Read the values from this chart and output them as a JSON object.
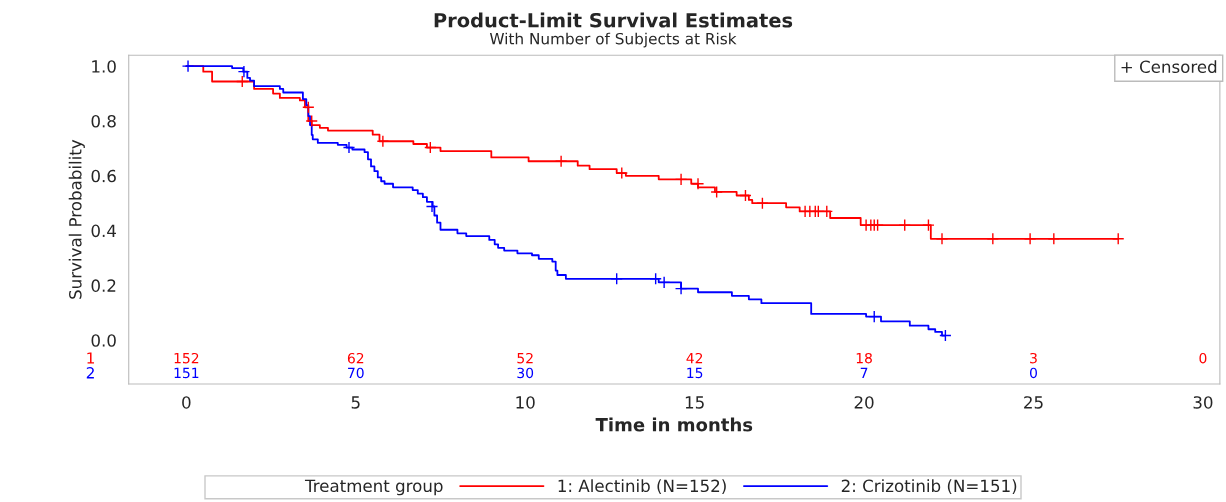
{
  "chart_data": {
    "type": "step",
    "title": "Product-Limit Survival Estimates",
    "subtitle": "With Number of Subjects at Risk",
    "xlabel": "Time in months",
    "ylabel": "Survival Probability",
    "legend_title": "Treatment group",
    "legend": "bottom",
    "grid": false,
    "line_style": "solid",
    "xlim": [
      -1.7,
      30.5
    ],
    "ylim": [
      -0.16,
      1.04
    ],
    "xticks": [
      0,
      5,
      10,
      15,
      20,
      25,
      30
    ],
    "yticks": [
      {
        "value": 0,
        "label": "0.0"
      },
      {
        "value": 0.2,
        "label": "0.2"
      },
      {
        "value": 0.4,
        "label": "0.4"
      },
      {
        "value": 0.6,
        "label": "0.6"
      },
      {
        "value": 0.8,
        "label": "0.8"
      },
      {
        "value": 1,
        "label": "1.0"
      }
    ],
    "series": [
      {
        "name": "1: Alectinib (N=152)",
        "color": "#ff0000",
        "x": [
          0,
          0.5,
          0.76,
          2.0,
          2.56,
          2.76,
          3.35,
          3.5,
          3.6,
          3.7,
          3.94,
          4.18,
          5.5,
          5.7,
          6.7,
          7.1,
          7.5,
          9.0,
          10.1,
          11.55,
          11.9,
          12.7,
          12.97,
          13.94,
          14.9,
          15.1,
          15.6,
          16.24,
          16.6,
          16.7,
          17.7,
          18.1,
          19.0,
          19.9,
          21.97,
          27.5
        ],
        "values": [
          1.0,
          0.98,
          0.944,
          0.917,
          0.9,
          0.884,
          0.875,
          0.85,
          0.8,
          0.785,
          0.775,
          0.765,
          0.75,
          0.726,
          0.716,
          0.703,
          0.69,
          0.667,
          0.653,
          0.637,
          0.624,
          0.61,
          0.6,
          0.587,
          0.571,
          0.558,
          0.541,
          0.528,
          0.512,
          0.5,
          0.485,
          0.47,
          0.446,
          0.42,
          0.37,
          0.37
        ]
      },
      {
        "name": "2: Crizotinib (N=151)",
        "color": "#0000ff",
        "x": [
          0,
          1.35,
          1.68,
          1.8,
          1.88,
          2.0,
          2.76,
          2.86,
          3.44,
          3.54,
          3.6,
          3.65,
          3.7,
          3.73,
          3.88,
          4.47,
          4.73,
          4.9,
          5.26,
          5.36,
          5.45,
          5.55,
          5.65,
          5.75,
          5.85,
          6.1,
          6.68,
          6.83,
          6.98,
          7.1,
          7.27,
          7.32,
          7.4,
          7.5,
          8.0,
          8.26,
          8.94,
          9.1,
          9.2,
          9.38,
          9.77,
          10.2,
          10.4,
          10.8,
          10.9,
          10.95,
          11.2,
          13.94,
          14.6,
          15.1,
          16.1,
          16.6,
          16.97,
          18.44,
          20.06,
          20.5,
          21.35,
          21.9,
          22.1,
          22.3,
          22.4
        ],
        "values": [
          1.0,
          0.993,
          0.98,
          0.957,
          0.947,
          0.927,
          0.917,
          0.904,
          0.88,
          0.858,
          0.818,
          0.785,
          0.749,
          0.733,
          0.72,
          0.713,
          0.703,
          0.696,
          0.686,
          0.66,
          0.634,
          0.617,
          0.594,
          0.58,
          0.571,
          0.558,
          0.548,
          0.535,
          0.522,
          0.505,
          0.488,
          0.455,
          0.429,
          0.403,
          0.39,
          0.38,
          0.366,
          0.35,
          0.337,
          0.327,
          0.317,
          0.31,
          0.297,
          0.287,
          0.254,
          0.238,
          0.224,
          0.211,
          0.188,
          0.175,
          0.162,
          0.149,
          0.135,
          0.096,
          0.086,
          0.069,
          0.053,
          0.04,
          0.03,
          0.017,
          0.017
        ]
      },
      {
        "color": "#ff0000",
        "type": "scatter",
        "marker": "cross",
        "x": [
          1.65,
          3.6,
          3.7,
          5.8,
          7.2,
          11.06,
          12.85,
          14.6,
          15.1,
          15.65,
          16.5,
          17.0,
          18.26,
          18.4,
          18.56,
          18.65,
          18.9,
          20.06,
          20.2,
          20.3,
          20.4,
          21.2,
          21.9,
          22.3,
          23.8,
          24.9,
          25.6,
          27.5
        ],
        "values": [
          0.944,
          0.85,
          0.8,
          0.726,
          0.703,
          0.653,
          0.61,
          0.587,
          0.571,
          0.541,
          0.528,
          0.5,
          0.47,
          0.47,
          0.47,
          0.47,
          0.47,
          0.42,
          0.42,
          0.42,
          0.42,
          0.42,
          0.42,
          0.37,
          0.37,
          0.37,
          0.37,
          0.37
        ]
      },
      {
        "color": "#0000ff",
        "type": "scatter",
        "marker": "cross",
        "x": [
          0.05,
          1.7,
          4.8,
          7.25,
          12.7,
          13.85,
          14.1,
          14.6,
          20.3,
          22.4
        ],
        "values": [
          1.0,
          0.98,
          0.703,
          0.488,
          0.224,
          0.224,
          0.211,
          0.188,
          0.086,
          0.017
        ]
      }
    ],
    "annotations": [
      "+ Censored",
      "1 152 62 52 42 18 3 0",
      "2 151 70 30 15 7 0"
    ]
  }
}
